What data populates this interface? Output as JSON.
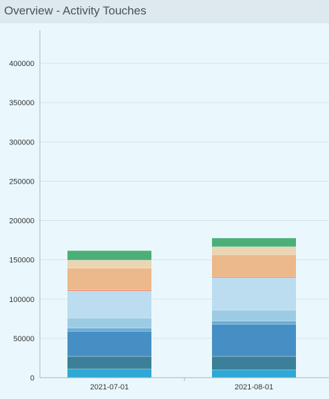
{
  "header": {
    "title": "Overview - Activity Touches"
  },
  "chart_data": {
    "type": "bar",
    "stacked": true,
    "categories": [
      "2021-07-01",
      "2021-08-01"
    ],
    "ylim": [
      0,
      420000
    ],
    "yticks": [
      0,
      50000,
      100000,
      150000,
      200000,
      250000,
      300000,
      350000,
      400000
    ],
    "grid": true,
    "series": [
      {
        "color": "#2fa8d6",
        "values": [
          11000,
          10000
        ]
      },
      {
        "color": "#3c7f98",
        "values": [
          16000,
          17000
        ]
      },
      {
        "color": "#468fc4",
        "values": [
          32000,
          41000
        ]
      },
      {
        "color": "#6aaad6",
        "values": [
          4000,
          4000
        ]
      },
      {
        "color": "#9ccce4",
        "values": [
          13000,
          14000
        ]
      },
      {
        "color": "#bcdcef",
        "values": [
          34000,
          41000
        ]
      },
      {
        "color": "#e87b67",
        "values": [
          1500,
          1500
        ]
      },
      {
        "color": "#ebb98a",
        "values": [
          28000,
          28000
        ]
      },
      {
        "color": "#ebd5b3",
        "values": [
          10000,
          10000
        ]
      },
      {
        "color": "#4caf78",
        "values": [
          12000,
          11000
        ]
      }
    ]
  }
}
